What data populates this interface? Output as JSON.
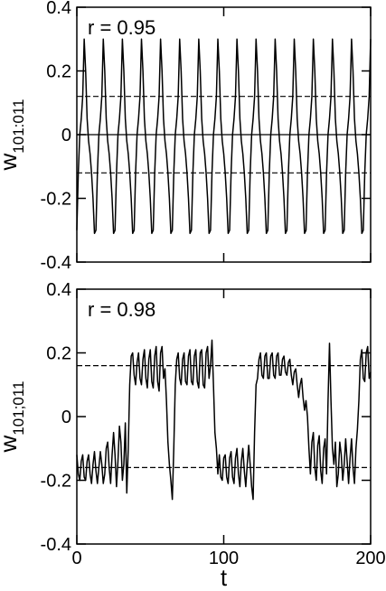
{
  "chart_data": [
    {
      "type": "line",
      "annotation": "r = 0.95",
      "ylabel": "w",
      "ylabel_subscript": "101:011",
      "color": "#000000",
      "xlim": [
        0,
        200
      ],
      "xticks": [
        0,
        100,
        200
      ],
      "xtick_labels": false,
      "ylim": [
        -0.4,
        0.4
      ],
      "yticks": [
        0.4,
        0.2,
        0,
        -0.2,
        -0.4
      ],
      "hlines": [
        {
          "value": 0.12,
          "style": "dashed"
        },
        {
          "value": 0,
          "style": "solid"
        },
        {
          "value": -0.12,
          "style": "dashed"
        }
      ],
      "x": [
        0,
        1,
        2,
        3,
        4,
        5,
        6,
        7,
        8,
        9,
        10,
        11,
        12,
        13,
        14,
        15,
        16,
        17,
        18,
        19,
        20,
        21,
        22,
        23,
        24,
        25,
        26,
        27,
        28,
        29,
        30,
        31,
        32,
        33,
        34,
        35,
        36,
        37,
        38,
        39,
        40,
        41,
        42,
        43,
        44,
        45,
        46,
        47,
        48,
        49,
        50,
        51,
        52,
        53,
        54,
        55,
        56,
        57,
        58,
        59,
        60,
        61,
        62,
        63,
        64,
        65,
        66,
        67,
        68,
        69,
        70,
        71,
        72,
        73,
        74,
        75,
        76,
        77,
        78,
        79,
        80,
        81,
        82,
        83,
        84,
        85,
        86,
        87,
        88,
        89,
        90,
        91,
        92,
        93,
        94,
        95,
        96,
        97,
        98,
        99,
        100,
        101,
        102,
        103,
        104,
        105,
        106,
        107,
        108,
        109,
        110,
        111,
        112,
        113,
        114,
        115,
        116,
        117,
        118,
        119,
        120,
        121,
        122,
        123,
        124,
        125,
        126,
        127,
        128,
        129,
        130,
        131,
        132,
        133,
        134,
        135,
        136,
        137,
        138,
        139,
        140,
        141,
        142,
        143,
        144,
        145,
        146,
        147,
        148,
        149,
        150,
        151,
        152,
        153,
        154,
        155,
        156,
        157,
        158,
        159,
        160,
        161,
        162,
        163,
        164,
        165,
        166,
        167,
        168,
        169,
        170,
        171,
        172,
        173,
        174,
        175,
        176,
        177,
        178,
        179,
        180,
        181,
        182,
        183,
        184,
        185,
        186,
        187,
        188,
        189,
        190,
        191,
        192,
        193,
        194,
        195,
        196,
        197,
        198,
        199,
        200
      ],
      "values": [
        -0.3,
        -0.12,
        0.0,
        0.05,
        0.12,
        0.3,
        0.2,
        0.05,
        -0.02,
        -0.06,
        -0.12,
        -0.2,
        -0.31,
        -0.3,
        -0.12,
        0.0,
        0.05,
        0.12,
        0.3,
        0.2,
        0.05,
        -0.02,
        -0.06,
        -0.12,
        -0.2,
        -0.31,
        -0.3,
        -0.12,
        0.0,
        0.05,
        0.12,
        0.3,
        0.2,
        0.05,
        -0.02,
        -0.06,
        -0.12,
        -0.2,
        -0.31,
        -0.3,
        -0.12,
        0.0,
        0.05,
        0.12,
        0.3,
        0.2,
        0.05,
        -0.02,
        -0.06,
        -0.12,
        -0.2,
        -0.31,
        -0.3,
        -0.12,
        0.0,
        0.05,
        0.12,
        0.3,
        0.2,
        0.05,
        -0.02,
        -0.06,
        -0.12,
        -0.2,
        -0.31,
        -0.3,
        -0.12,
        0.0,
        0.05,
        0.12,
        0.3,
        0.2,
        0.05,
        -0.02,
        -0.06,
        -0.12,
        -0.2,
        -0.31,
        -0.3,
        -0.12,
        0.0,
        0.05,
        0.12,
        0.3,
        0.2,
        0.05,
        -0.02,
        -0.06,
        -0.12,
        -0.2,
        -0.31,
        -0.3,
        -0.12,
        0.0,
        0.05,
        0.12,
        0.3,
        0.2,
        0.05,
        -0.02,
        -0.06,
        -0.12,
        -0.2,
        -0.31,
        -0.3,
        -0.12,
        0.0,
        0.05,
        0.12,
        0.3,
        0.2,
        0.05,
        -0.02,
        -0.06,
        -0.12,
        -0.2,
        -0.31,
        -0.3,
        -0.12,
        0.0,
        0.05,
        0.12,
        0.3,
        0.2,
        0.05,
        -0.02,
        -0.06,
        -0.12,
        -0.2,
        -0.31,
        -0.3,
        -0.12,
        0.0,
        0.05,
        0.12,
        0.3,
        0.2,
        0.05,
        -0.02,
        -0.06,
        -0.12,
        -0.2,
        -0.31,
        -0.3,
        -0.12,
        0.0,
        0.05,
        0.12,
        0.3,
        0.2,
        0.05,
        -0.02,
        -0.06,
        -0.12,
        -0.2,
        -0.31,
        -0.3,
        -0.12,
        0.0,
        0.05,
        0.12,
        0.3,
        0.2,
        0.05,
        -0.02,
        -0.06,
        -0.12,
        -0.2,
        -0.31,
        -0.3,
        -0.12,
        0.0,
        0.05,
        0.12,
        0.3,
        0.2,
        0.05,
        -0.02,
        -0.06,
        -0.12,
        -0.2,
        -0.31,
        -0.3,
        -0.12,
        0.0,
        0.05,
        0.12,
        0.3,
        0.2,
        0.05,
        -0.02,
        -0.06,
        -0.12,
        -0.2,
        -0.31,
        -0.3,
        -0.12,
        0.0,
        0.05,
        0.12,
        0.3
      ]
    },
    {
      "type": "line",
      "annotation": "r = 0.98",
      "ylabel": "w",
      "ylabel_subscript": "101;011",
      "xlabel": "t",
      "color": "#000000",
      "xlim": [
        0,
        200
      ],
      "xticks": [
        0,
        100,
        200
      ],
      "xtick_labels": true,
      "ylim": [
        -0.4,
        0.4
      ],
      "yticks": [
        0.4,
        0.2,
        0,
        -0.2,
        -0.4
      ],
      "hlines": [
        {
          "value": 0.16,
          "style": "dashed"
        },
        {
          "value": -0.16,
          "style": "dashed"
        }
      ],
      "x": [
        0,
        1,
        2,
        3,
        4,
        5,
        6,
        7,
        8,
        9,
        10,
        11,
        12,
        13,
        14,
        15,
        16,
        17,
        18,
        19,
        20,
        21,
        22,
        23,
        24,
        25,
        26,
        27,
        28,
        29,
        30,
        31,
        32,
        33,
        34,
        35,
        36,
        37,
        38,
        39,
        40,
        41,
        42,
        43,
        44,
        45,
        46,
        47,
        48,
        49,
        50,
        51,
        52,
        53,
        54,
        55,
        56,
        57,
        58,
        59,
        60,
        61,
        62,
        63,
        64,
        65,
        66,
        67,
        68,
        69,
        70,
        71,
        72,
        73,
        74,
        75,
        76,
        77,
        78,
        79,
        80,
        81,
        82,
        83,
        84,
        85,
        86,
        87,
        88,
        89,
        90,
        91,
        92,
        93,
        94,
        95,
        96,
        97,
        98,
        99,
        100,
        101,
        102,
        103,
        104,
        105,
        106,
        107,
        108,
        109,
        110,
        111,
        112,
        113,
        114,
        115,
        116,
        117,
        118,
        119,
        120,
        121,
        122,
        123,
        124,
        125,
        126,
        127,
        128,
        129,
        130,
        131,
        132,
        133,
        134,
        135,
        136,
        137,
        138,
        139,
        140,
        141,
        142,
        143,
        144,
        145,
        146,
        147,
        148,
        149,
        150,
        151,
        152,
        153,
        154,
        155,
        156,
        157,
        158,
        159,
        160,
        161,
        162,
        163,
        164,
        165,
        166,
        167,
        168,
        169,
        170,
        171,
        172,
        173,
        174,
        175,
        176,
        177,
        178,
        179,
        180,
        181,
        182,
        183,
        184,
        185,
        186,
        187,
        188,
        189,
        190,
        191,
        192,
        193,
        194,
        195,
        196,
        197,
        198,
        199,
        200
      ],
      "values": [
        -0.12,
        -0.18,
        -0.2,
        -0.14,
        -0.12,
        -0.19,
        -0.2,
        -0.14,
        -0.12,
        -0.18,
        -0.21,
        -0.15,
        -0.11,
        -0.17,
        -0.21,
        -0.16,
        -0.11,
        -0.15,
        -0.21,
        -0.18,
        -0.1,
        -0.08,
        -0.16,
        -0.21,
        -0.12,
        -0.05,
        -0.12,
        -0.22,
        -0.14,
        -0.03,
        -0.08,
        -0.2,
        -0.15,
        -0.02,
        -0.24,
        -0.1,
        0.1,
        0.19,
        0.2,
        0.13,
        0.1,
        0.17,
        0.2,
        0.12,
        0.1,
        0.18,
        0.21,
        0.12,
        0.09,
        0.18,
        0.21,
        0.11,
        0.09,
        0.19,
        0.22,
        0.11,
        0.08,
        0.2,
        0.22,
        0.12,
        0.15,
        0.05,
        -0.08,
        -0.15,
        -0.2,
        -0.26,
        -0.1,
        0.1,
        0.18,
        0.2,
        0.12,
        0.1,
        0.18,
        0.2,
        0.11,
        0.1,
        0.19,
        0.21,
        0.11,
        0.1,
        0.19,
        0.21,
        0.11,
        0.09,
        0.2,
        0.21,
        0.1,
        0.09,
        0.2,
        0.22,
        0.12,
        0.16,
        0.24,
        0.1,
        -0.05,
        -0.1,
        -0.18,
        -0.12,
        -0.19,
        -0.2,
        -0.13,
        -0.12,
        -0.19,
        -0.21,
        -0.13,
        -0.11,
        -0.19,
        -0.21,
        -0.13,
        -0.1,
        -0.18,
        -0.22,
        -0.14,
        -0.1,
        -0.17,
        -0.22,
        -0.15,
        -0.09,
        -0.15,
        -0.22,
        -0.26,
        -0.05,
        0.1,
        0.12,
        0.18,
        0.2,
        0.13,
        0.12,
        0.19,
        0.2,
        0.12,
        0.12,
        0.19,
        0.2,
        0.13,
        0.12,
        0.19,
        0.2,
        0.13,
        0.13,
        0.18,
        0.19,
        0.14,
        0.13,
        0.17,
        0.18,
        0.13,
        0.1,
        0.14,
        0.15,
        0.1,
        0.06,
        0.1,
        0.12,
        0.06,
        0.02,
        0.05,
        0.0,
        -0.1,
        -0.18,
        -0.08,
        -0.05,
        -0.16,
        -0.2,
        -0.09,
        -0.06,
        -0.17,
        -0.21,
        -0.1,
        -0.07,
        -0.18,
        0.05,
        0.23,
        0.05,
        -0.1,
        -0.15,
        -0.08,
        -0.22,
        -0.18,
        -0.08,
        -0.12,
        -0.2,
        -0.15,
        -0.07,
        -0.14,
        -0.21,
        -0.13,
        -0.07,
        -0.16,
        -0.21,
        -0.1,
        -0.04,
        0.05,
        0.18,
        0.21,
        0.12,
        0.11,
        0.2,
        0.22,
        0.12,
        0.14
      ]
    }
  ]
}
